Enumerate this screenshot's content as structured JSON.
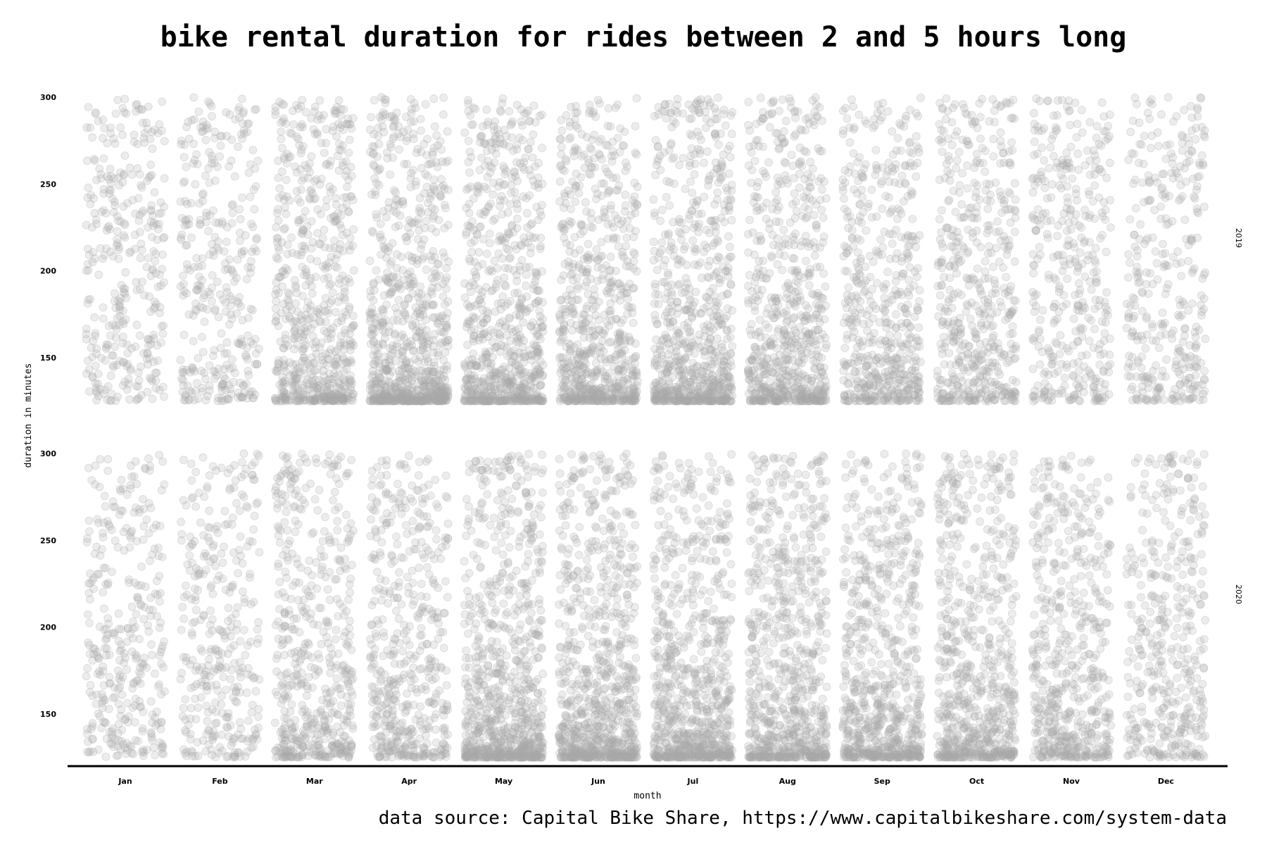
{
  "chart_data": {
    "type": "scatter",
    "title": "bike rental duration for rides between 2 and 5 hours long",
    "caption": "data source: Capital Bike Share, https://www.capitalbikeshare.com/system-data",
    "xlabel": "month",
    "ylabel": "duration in minutes",
    "categories": [
      "Jan",
      "Feb",
      "Mar",
      "Apr",
      "May",
      "Jun",
      "Jul",
      "Aug",
      "Sep",
      "Oct",
      "Nov",
      "Dec"
    ],
    "ylim": [
      120,
      300
    ],
    "yticks": [
      150,
      200,
      250,
      300
    ],
    "point_color": "#a9a9a9",
    "grid": false,
    "facets": [
      {
        "label": "2019",
        "relative_density": [
          0.28,
          0.28,
          0.75,
          1.0,
          0.88,
          0.85,
          0.9,
          0.8,
          0.6,
          0.55,
          0.35,
          0.3
        ]
      },
      {
        "label": "2020",
        "relative_density": [
          0.28,
          0.28,
          0.55,
          0.5,
          1.0,
          1.0,
          0.95,
          0.9,
          0.85,
          0.8,
          0.6,
          0.4
        ]
      }
    ]
  }
}
